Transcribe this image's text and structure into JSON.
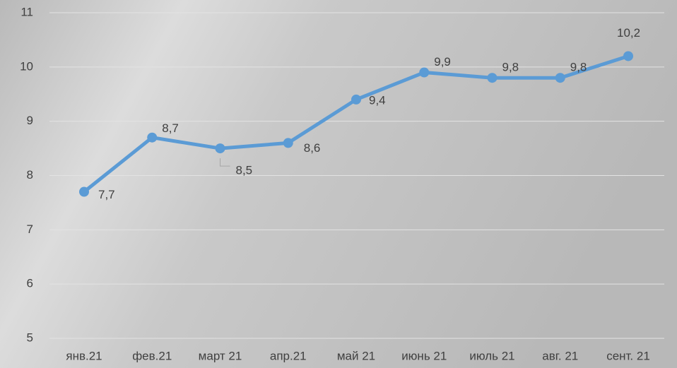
{
  "chart_data": {
    "type": "line",
    "categories": [
      "янв.21",
      "фев.21",
      "март 21",
      "апр.21",
      "май 21",
      "июнь 21",
      "июль 21",
      "авг. 21",
      "сент. 21"
    ],
    "series": [
      {
        "color": "#5b9bd5",
        "values": [
          7.7,
          8.7,
          8.5,
          8.6,
          9.4,
          9.9,
          9.8,
          9.8,
          10.2
        ],
        "value_labels": [
          "7,7",
          "8,7",
          "8,5",
          "8,6",
          "9,4",
          "9,9",
          "9,8",
          "9,8",
          "10,2"
        ]
      }
    ],
    "ylim": [
      5,
      11
    ],
    "yticks": [
      5,
      6,
      7,
      8,
      9,
      10,
      11
    ],
    "grid": true
  }
}
